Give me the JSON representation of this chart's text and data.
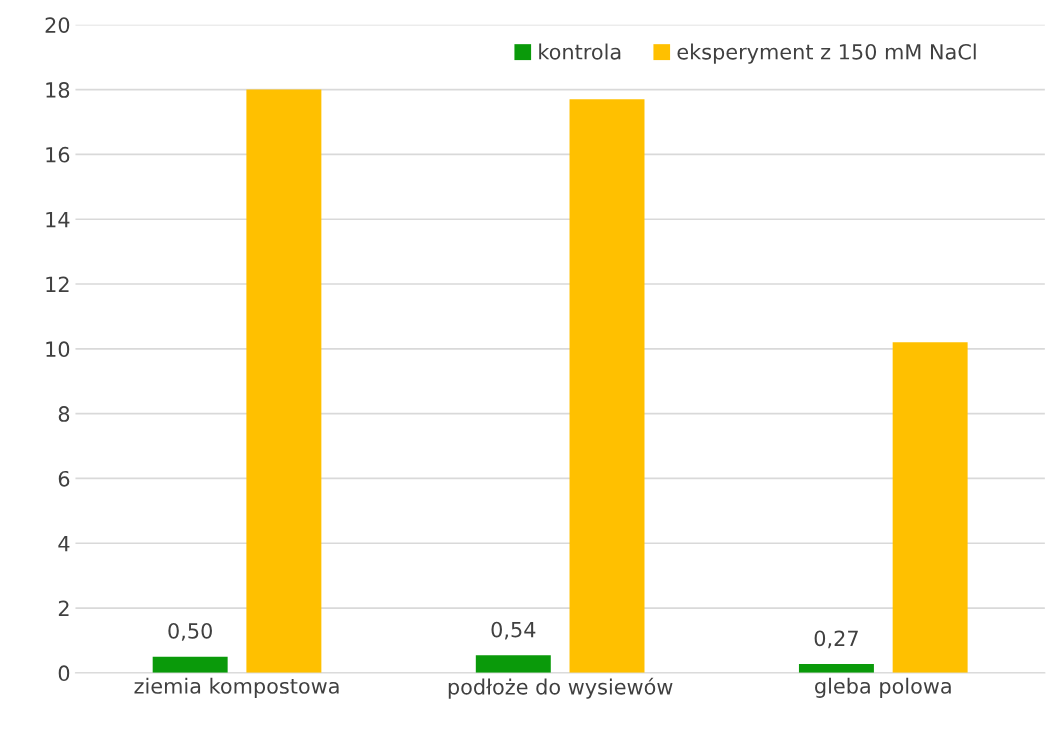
{
  "chart_data": {
    "type": "bar",
    "categories": [
      "ziemia kompostowa",
      "podłoże do wysiewów",
      "gleba polowa"
    ],
    "series": [
      {
        "name": "kontrola",
        "color": "#0a9a0a",
        "values": [
          0.5,
          0.54,
          0.27
        ],
        "value_labels": [
          "0,50",
          "0,54",
          "0,27"
        ]
      },
      {
        "name": "eksperyment z 150 mM NaCl",
        "color": "#ffc000",
        "values": [
          18.0,
          17.7,
          10.2
        ]
      }
    ],
    "ylim": [
      0,
      20
    ],
    "yticks": [
      0,
      2,
      4,
      6,
      8,
      10,
      12,
      14,
      16,
      18,
      20
    ],
    "grid": "y",
    "legend": "top right"
  }
}
